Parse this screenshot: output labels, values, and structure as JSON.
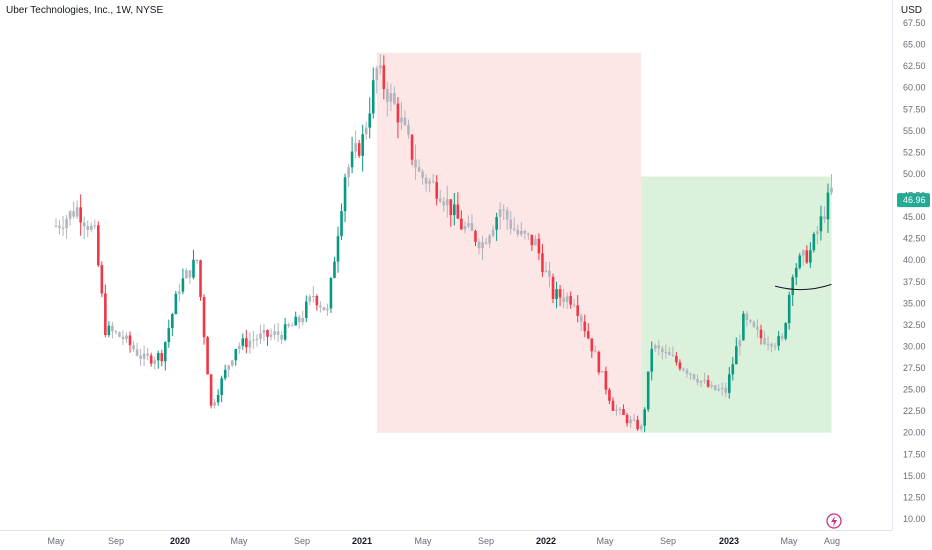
{
  "header": {
    "title": "Uber Technologies, Inc., 1W, NYSE",
    "currency": "USD"
  },
  "price_label": {
    "value": "46.96"
  },
  "colors": {
    "up": "#089981",
    "down": "#f23645",
    "neutral": "#b2b5be",
    "last_price_bg": "#22ab94"
  },
  "icons": [
    "lightning-icon"
  ],
  "chart_data": {
    "type": "candlestick",
    "y_axis": {
      "ticks": [
        "10.00",
        "12.50",
        "15.00",
        "17.50",
        "20.00",
        "22.50",
        "25.00",
        "27.50",
        "30.00",
        "32.50",
        "35.00",
        "37.50",
        "40.00",
        "42.50",
        "45.00",
        "47.50",
        "50.00",
        "52.50",
        "55.00",
        "57.50",
        "60.00",
        "62.50",
        "65.00",
        "67.50"
      ],
      "range": [
        9.5,
        68.5
      ]
    },
    "x_axis": {
      "ticks": [
        {
          "label": "May",
          "bold": false
        },
        {
          "label": "Sep",
          "bold": false
        },
        {
          "label": "2020",
          "bold": true
        },
        {
          "label": "May",
          "bold": false
        },
        {
          "label": "Sep",
          "bold": false
        },
        {
          "label": "2021",
          "bold": true
        },
        {
          "label": "May",
          "bold": false
        },
        {
          "label": "Sep",
          "bold": false
        },
        {
          "label": "2022",
          "bold": true
        },
        {
          "label": "May",
          "bold": false
        },
        {
          "label": "Sep",
          "bold": false
        },
        {
          "label": "2023",
          "bold": true
        },
        {
          "label": "May",
          "bold": false
        },
        {
          "label": "Aug",
          "bold": false
        }
      ]
    },
    "zones": [
      {
        "start": "2021-02-08",
        "end": "2022-07-18",
        "top": 64.05,
        "bottom": 20.0,
        "color": "#fde6e6"
      },
      {
        "start": "2022-07-18",
        "end": "2023-07-31",
        "top": 49.7,
        "bottom": 20.0,
        "color": "#dcf1dc"
      }
    ],
    "arc": {
      "start": "2023-04-10",
      "end": "2023-07-31",
      "values": [
        37.0,
        36.7,
        37.2
      ]
    },
    "last_price": 46.96,
    "anchors": [
      [
        "2019-05-13",
        44
      ],
      [
        "2019-06-24",
        46
      ],
      [
        "2019-07-29",
        43
      ],
      [
        "2019-08-19",
        32
      ],
      [
        "2019-09-23",
        31
      ],
      [
        "2019-11-04",
        28.5
      ],
      [
        "2019-12-09",
        29
      ],
      [
        "2020-01-13",
        37
      ],
      [
        "2020-02-17",
        40
      ],
      [
        "2020-03-16",
        23
      ],
      [
        "2020-03-23",
        24
      ],
      [
        "2020-05-04",
        30
      ],
      [
        "2020-06-15",
        31
      ],
      [
        "2020-08-03",
        31.5
      ],
      [
        "2020-09-07",
        33
      ],
      [
        "2020-10-05",
        36
      ],
      [
        "2020-11-02",
        34
      ],
      [
        "2020-12-07",
        50
      ],
      [
        "2021-01-11",
        54
      ],
      [
        "2021-02-08",
        62
      ],
      [
        "2021-03-22",
        57
      ],
      [
        "2021-05-03",
        50
      ],
      [
        "2021-06-14",
        48
      ],
      [
        "2021-07-26",
        44
      ],
      [
        "2021-09-06",
        42
      ],
      [
        "2021-10-11",
        46
      ],
      [
        "2021-11-15",
        43
      ],
      [
        "2021-12-20",
        42
      ],
      [
        "2022-01-24",
        36
      ],
      [
        "2022-03-07",
        35.5
      ],
      [
        "2022-04-11",
        30
      ],
      [
        "2022-05-23",
        23
      ],
      [
        "2022-06-20",
        21.5
      ],
      [
        "2022-07-18",
        20.5
      ],
      [
        "2022-07-25",
        23
      ],
      [
        "2022-08-08",
        30
      ],
      [
        "2022-09-19",
        28.5
      ],
      [
        "2022-10-24",
        27
      ],
      [
        "2022-12-05",
        25
      ],
      [
        "2023-01-02",
        24.8
      ],
      [
        "2023-02-06",
        33
      ],
      [
        "2023-03-13",
        31
      ],
      [
        "2023-04-24",
        30.5
      ],
      [
        "2023-05-15",
        39
      ],
      [
        "2023-06-19",
        41
      ],
      [
        "2023-07-31",
        48
      ]
    ]
  }
}
